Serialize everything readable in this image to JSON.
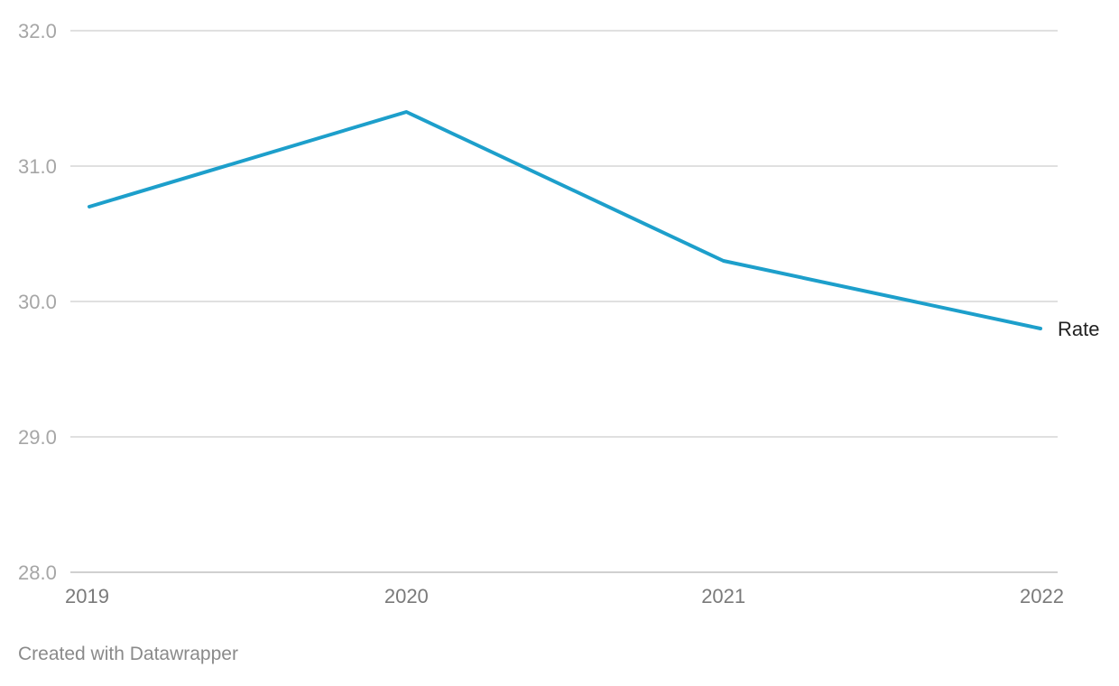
{
  "chart_data": {
    "type": "line",
    "x": [
      "2019",
      "2020",
      "2021",
      "2022"
    ],
    "series": [
      {
        "name": "Rate",
        "values": [
          30.7,
          31.4,
          30.3,
          29.8
        ],
        "color": "#1d9fcb"
      }
    ],
    "ylim": [
      28.0,
      32.0
    ],
    "yticks": [
      "28.0",
      "29.0",
      "30.0",
      "31.0",
      "32.0"
    ],
    "grid": true,
    "legend": "inline-end-label"
  },
  "footer": {
    "credit": "Created with Datawrapper"
  }
}
